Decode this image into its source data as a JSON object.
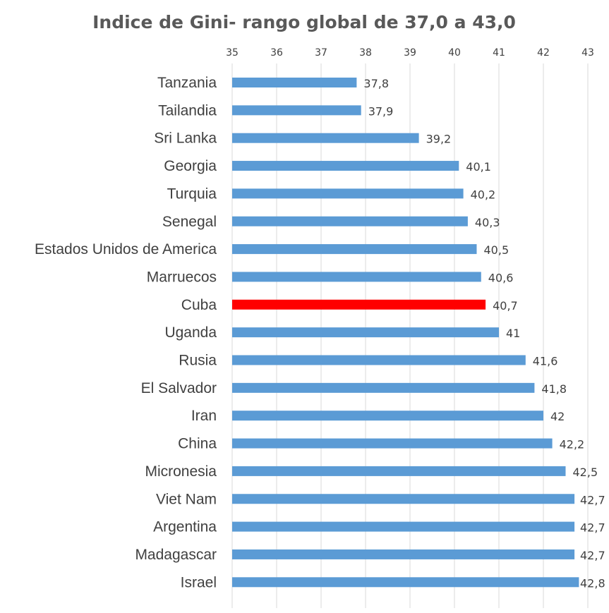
{
  "chart_data": {
    "type": "bar",
    "orientation": "horizontal",
    "title": "Indice de Gini- rango global de 37,0 a 43,0",
    "xlabel": "",
    "ylabel": "",
    "xlim": [
      35,
      43
    ],
    "ticks": [
      35,
      36,
      37,
      38,
      39,
      40,
      41,
      42,
      43
    ],
    "tick_labels": [
      "35",
      "36",
      "37",
      "38",
      "39",
      "40",
      "41",
      "42",
      "43"
    ],
    "grid": true,
    "axis_position": "top",
    "categories": [
      "Tanzania",
      "Tailandia",
      "Sri Lanka",
      "Georgia",
      "Turquia",
      "Senegal",
      "Estados Unidos de America",
      "Marruecos",
      "Cuba",
      "Uganda",
      "Rusia",
      "El Salvador",
      "Iran",
      "China",
      "Micronesia",
      "Viet Nam",
      "Argentina",
      "Madagascar",
      "Israel"
    ],
    "values": [
      37.8,
      37.9,
      39.2,
      40.1,
      40.2,
      40.3,
      40.5,
      40.6,
      40.7,
      41,
      41.6,
      41.8,
      42,
      42.2,
      42.5,
      42.7,
      42.7,
      42.7,
      42.8
    ],
    "data_labels": [
      "37,8",
      "37,9",
      "39,2",
      "40,1",
      "40,2",
      "40,3",
      "40,5",
      "40,6",
      "40,7",
      "41",
      "41,6",
      "41,8",
      "42",
      "42,2",
      "42,5",
      "42,7",
      "42,7",
      "42,7",
      "42,8"
    ],
    "highlight_category": "Cuba",
    "colors": {
      "bar": "#5b9bd5",
      "highlight": "#ff0000",
      "grid": "#d9d9d9",
      "text": "#404040",
      "title": "#595959"
    }
  }
}
